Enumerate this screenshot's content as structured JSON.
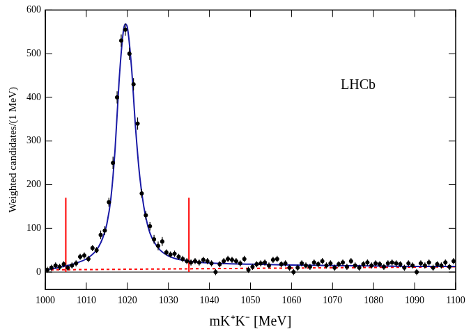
{
  "chart_data": {
    "type": "scatter",
    "x_label": "mK⁺K⁻ [MeV]",
    "y_label": "Weighted candidates/(1 MeV)",
    "annotations": [
      {
        "text": "LHCb"
      }
    ],
    "xlim": [
      1000,
      1100
    ],
    "xticks": [
      1000,
      1010,
      1020,
      1030,
      1040,
      1050,
      1060,
      1070,
      1080,
      1090,
      1100
    ],
    "ylim": [
      -40,
      600
    ],
    "yticks": [
      0,
      100,
      200,
      300,
      400,
      500,
      600
    ],
    "grid": false,
    "series": [
      {
        "type": "scatter",
        "marker": "circle",
        "color": "#000000",
        "x": [
          1000.5,
          1001.5,
          1002.5,
          1003.5,
          1004.5,
          1005.5,
          1006.5,
          1007.5,
          1008.5,
          1009.5,
          1010.5,
          1011.5,
          1012.5,
          1013.5,
          1014.5,
          1015.5,
          1016.5,
          1017.5,
          1018.5,
          1019.5,
          1020.5,
          1021.5,
          1022.5,
          1023.5,
          1024.5,
          1025.5,
          1026.5,
          1027.5,
          1028.5,
          1029.5,
          1030.5,
          1031.5,
          1032.5,
          1033.5,
          1034.5,
          1035.5,
          1036.5,
          1037.5,
          1038.5,
          1039.5,
          1040.5,
          1041.5,
          1042.5,
          1043.5,
          1044.5,
          1045.5,
          1046.5,
          1047.5,
          1048.5,
          1049.5,
          1050.5,
          1051.5,
          1052.5,
          1053.5,
          1054.5,
          1055.5,
          1056.5,
          1057.5,
          1058.5,
          1059.5,
          1060.5,
          1061.5,
          1062.5,
          1063.5,
          1064.5,
          1065.5,
          1066.5,
          1067.5,
          1068.5,
          1069.5,
          1070.5,
          1071.5,
          1072.5,
          1073.5,
          1074.5,
          1075.5,
          1076.5,
          1077.5,
          1078.5,
          1079.5,
          1080.5,
          1081.5,
          1082.5,
          1083.5,
          1084.5,
          1085.5,
          1086.5,
          1087.5,
          1088.5,
          1089.5,
          1090.5,
          1091.5,
          1092.5,
          1093.5,
          1094.5,
          1095.5,
          1096.5,
          1097.5,
          1098.5,
          1099.5
        ],
        "values": [
          5,
          10,
          15,
          12,
          18,
          10,
          15,
          20,
          35,
          38,
          30,
          55,
          50,
          85,
          95,
          160,
          250,
          400,
          530,
          555,
          500,
          430,
          340,
          180,
          130,
          105,
          75,
          60,
          70,
          45,
          40,
          42,
          35,
          30,
          25,
          22,
          25,
          22,
          28,
          25,
          20,
          0,
          18,
          25,
          30,
          28,
          25,
          20,
          30,
          5,
          12,
          18,
          20,
          22,
          15,
          28,
          30,
          18,
          20,
          10,
          0,
          10,
          20,
          15,
          12,
          22,
          18,
          25,
          15,
          20,
          10,
          18,
          22,
          12,
          25,
          15,
          10,
          18,
          22,
          15,
          20,
          18,
          12,
          20,
          22,
          20,
          18,
          10,
          20,
          15,
          0,
          20,
          15,
          22,
          10,
          18,
          15,
          22,
          12,
          25
        ],
        "errors": [
          7,
          7,
          7,
          7,
          7,
          7,
          7,
          7,
          7,
          7,
          7,
          7,
          7,
          10,
          10,
          10,
          14,
          14,
          14,
          14,
          14,
          14,
          14,
          10,
          10,
          10,
          10,
          10,
          10,
          7,
          7,
          7,
          7,
          7,
          7,
          7,
          7,
          7,
          7,
          7,
          7,
          7,
          7,
          7,
          7,
          7,
          7,
          7,
          7,
          7,
          7,
          7,
          7,
          7,
          7,
          7,
          7,
          7,
          7,
          7,
          7,
          7,
          7,
          7,
          7,
          7,
          7,
          7,
          7,
          7,
          7,
          7,
          7,
          7,
          7,
          7,
          7,
          7,
          7,
          7,
          7,
          7,
          7,
          7,
          7,
          7,
          7,
          7,
          7,
          7,
          7,
          7,
          7,
          7,
          7,
          7,
          7,
          7,
          7,
          7
        ]
      },
      {
        "type": "line",
        "color": "#1a1aa6",
        "x": [
          1000,
          1002,
          1004,
          1006,
          1008,
          1010,
          1012,
          1013,
          1014,
          1015,
          1016,
          1017,
          1018,
          1019,
          1019.5,
          1020,
          1021,
          1022,
          1023,
          1024,
          1025,
          1026,
          1028,
          1030,
          1032,
          1035,
          1040,
          1050,
          1060,
          1070,
          1080,
          1090,
          1100
        ],
        "values": [
          5,
          8,
          12,
          16,
          22,
          30,
          45,
          58,
          78,
          110,
          170,
          280,
          440,
          550,
          568,
          560,
          470,
          330,
          220,
          150,
          105,
          78,
          50,
          37,
          30,
          25,
          21,
          18,
          16,
          15,
          14,
          13,
          13
        ]
      },
      {
        "type": "line",
        "line_style": "dashed",
        "color": "#ff0000",
        "x": [
          1000,
          1100
        ],
        "values": [
          5,
          12
        ]
      },
      {
        "type": "line",
        "color": "#ff0000",
        "x": [
          1005,
          1005
        ],
        "values": [
          0,
          170
        ]
      },
      {
        "type": "line",
        "color": "#ff0000",
        "x": [
          1035,
          1035
        ],
        "values": [
          0,
          170
        ]
      }
    ]
  }
}
